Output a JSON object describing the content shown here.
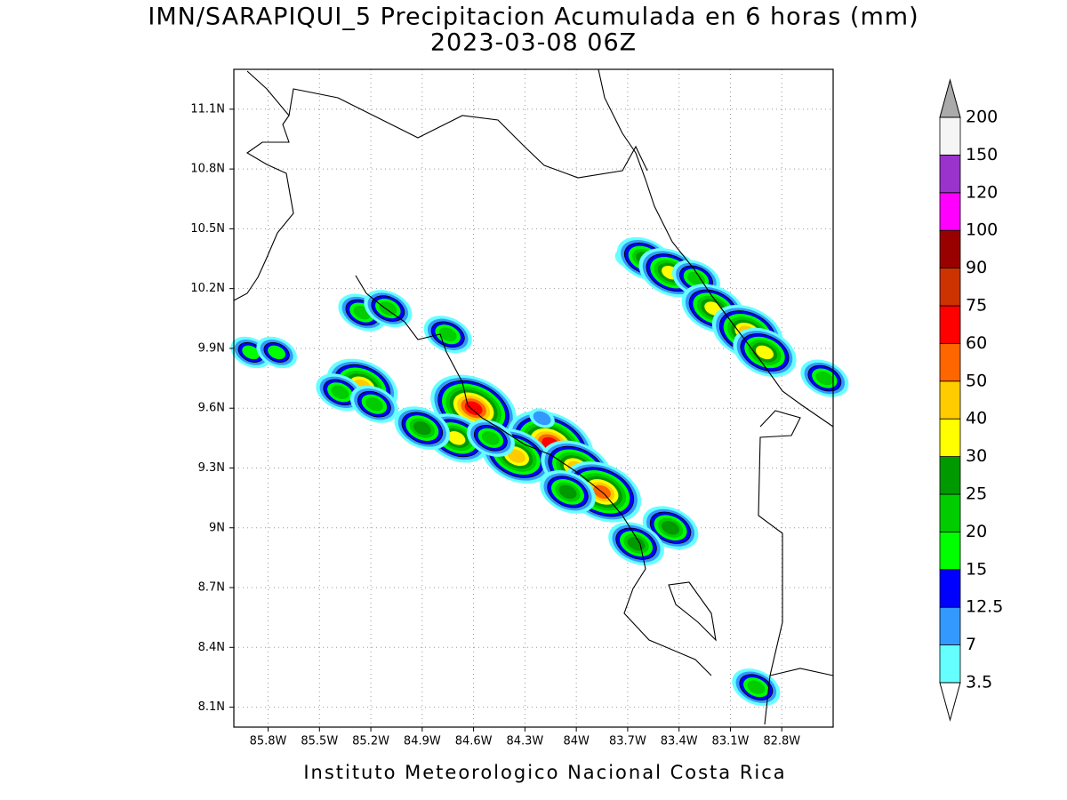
{
  "chart_data": {
    "type": "map",
    "title": "IMN/SARAPIQUI_5 Precipitacion Acumulada en 6 horas (mm)",
    "subtitle": "2023-03-08 06Z",
    "footer": "Instituto Meteorologico Nacional Costa Rica",
    "xlim": [
      -86.0,
      -82.5
    ],
    "ylim": [
      8.0,
      11.3
    ],
    "xticks": [
      {
        "value": -85.8,
        "label": "85.8W"
      },
      {
        "value": -85.5,
        "label": "85.5W"
      },
      {
        "value": -85.2,
        "label": "85.2W"
      },
      {
        "value": -84.9,
        "label": "84.9W"
      },
      {
        "value": -84.6,
        "label": "84.6W"
      },
      {
        "value": -84.3,
        "label": "84.3W"
      },
      {
        "value": -84.0,
        "label": "84W"
      },
      {
        "value": -83.7,
        "label": "83.7W"
      },
      {
        "value": -83.4,
        "label": "83.4W"
      },
      {
        "value": -83.1,
        "label": "83.1W"
      },
      {
        "value": -82.8,
        "label": "82.8W"
      }
    ],
    "yticks": [
      {
        "value": 8.1,
        "label": "8.1N"
      },
      {
        "value": 8.4,
        "label": "8.4N"
      },
      {
        "value": 8.7,
        "label": "8.7N"
      },
      {
        "value": 9.0,
        "label": "9N"
      },
      {
        "value": 9.3,
        "label": "9.3N"
      },
      {
        "value": 9.6,
        "label": "9.6N"
      },
      {
        "value": 9.9,
        "label": "9.9N"
      },
      {
        "value": 10.2,
        "label": "10.2N"
      },
      {
        "value": 10.5,
        "label": "10.5N"
      },
      {
        "value": 10.8,
        "label": "10.8N"
      },
      {
        "value": 11.1,
        "label": "11.1N"
      }
    ],
    "grid": true,
    "levels": [
      3.5,
      7,
      12.5,
      15,
      20,
      25,
      30,
      40,
      50,
      60,
      75,
      90,
      100,
      120,
      150,
      200
    ],
    "colors": [
      "#66ffff",
      "#3399ff",
      "#0000ff",
      "#00ff00",
      "#00cc00",
      "#009900",
      "#ffff00",
      "#ffcc00",
      "#ff6600",
      "#ff0000",
      "#cc3300",
      "#990000",
      "#ff00ff",
      "#9933cc",
      "#f5f5f5"
    ],
    "under_color": "#ffffff",
    "over_color": "#aaaaaa",
    "cells": [
      {
        "lon": -84.6,
        "lat": 9.6,
        "value": 65
      },
      {
        "lon": -84.15,
        "lat": 9.42,
        "value": 65
      },
      {
        "lon": -84.35,
        "lat": 9.36,
        "value": 40
      },
      {
        "lon": -84.0,
        "lat": 9.3,
        "value": 45
      },
      {
        "lon": -83.85,
        "lat": 9.18,
        "value": 55
      },
      {
        "lon": -84.05,
        "lat": 9.18,
        "value": 25
      },
      {
        "lon": -84.7,
        "lat": 9.45,
        "value": 35
      },
      {
        "lon": -84.5,
        "lat": 9.45,
        "value": 20
      },
      {
        "lon": -84.9,
        "lat": 9.5,
        "value": 25
      },
      {
        "lon": -84.2,
        "lat": 9.55,
        "value": 12
      },
      {
        "lon": -85.25,
        "lat": 9.71,
        "value": 40
      },
      {
        "lon": -85.38,
        "lat": 9.68,
        "value": 20
      },
      {
        "lon": -85.18,
        "lat": 9.62,
        "value": 20
      },
      {
        "lon": -85.25,
        "lat": 10.08,
        "value": 22
      },
      {
        "lon": -85.1,
        "lat": 10.1,
        "value": 20
      },
      {
        "lon": -84.75,
        "lat": 9.97,
        "value": 22
      },
      {
        "lon": -83.7,
        "lat": 10.35,
        "value": 10
      },
      {
        "lon": -83.6,
        "lat": 10.35,
        "value": 25
      },
      {
        "lon": -83.45,
        "lat": 10.28,
        "value": 35
      },
      {
        "lon": -83.3,
        "lat": 10.25,
        "value": 22
      },
      {
        "lon": -83.2,
        "lat": 10.1,
        "value": 32
      },
      {
        "lon": -83.0,
        "lat": 9.98,
        "value": 40
      },
      {
        "lon": -82.9,
        "lat": 9.88,
        "value": 30
      },
      {
        "lon": -82.55,
        "lat": 9.75,
        "value": 20
      },
      {
        "lon": -85.9,
        "lat": 9.88,
        "value": 15
      },
      {
        "lon": -85.75,
        "lat": 9.88,
        "value": 15
      },
      {
        "lon": -83.45,
        "lat": 9.0,
        "value": 25
      },
      {
        "lon": -83.65,
        "lat": 8.92,
        "value": 25
      },
      {
        "lon": -82.95,
        "lat": 8.2,
        "value": 22
      }
    ]
  }
}
